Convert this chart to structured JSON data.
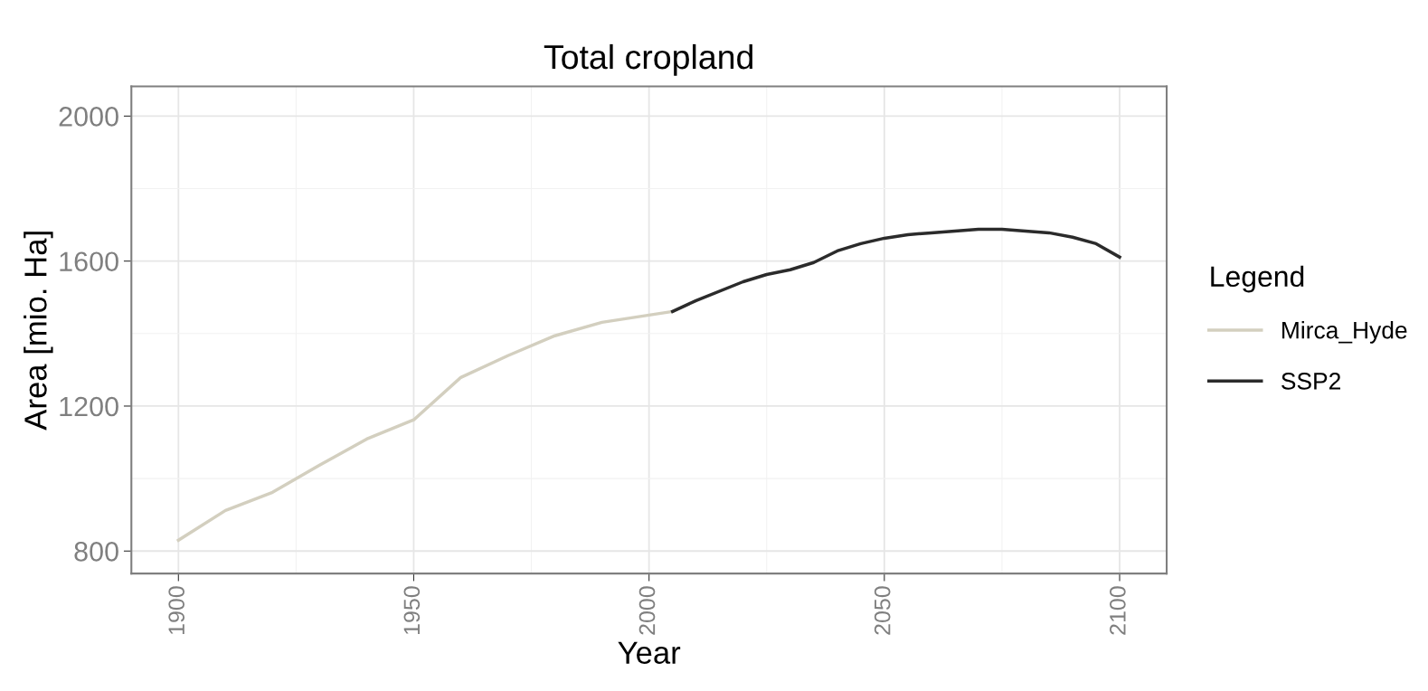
{
  "chart_data": {
    "type": "line",
    "title": "Total cropland",
    "xlabel": "Year",
    "ylabel": "Area [mio. Ha]",
    "legend_title": "Legend",
    "legend": "right",
    "grid": true,
    "xlim": [
      1890,
      2110
    ],
    "xticks": [
      1900,
      1950,
      2000,
      2050,
      2100
    ],
    "ylim": [
      738,
      2082
    ],
    "yticks": [
      800,
      1200,
      1600,
      2000
    ],
    "series": [
      {
        "name": "Mirca_Hyde",
        "color": "#d3cfbf",
        "x": [
          1900,
          1910,
          1920,
          1930,
          1940,
          1950,
          1960,
          1970,
          1980,
          1990,
          2000,
          2005
        ],
        "values": [
          830,
          912,
          962,
          1037,
          1109,
          1162,
          1279,
          1339,
          1394,
          1431,
          1451,
          1461
        ]
      },
      {
        "name": "SSP2",
        "color": "#2b2b2b",
        "x": [
          2005,
          2010,
          2020,
          2025,
          2030,
          2035,
          2040,
          2045,
          2050,
          2055,
          2060,
          2065,
          2070,
          2075,
          2080,
          2085,
          2090,
          2095,
          2100
        ],
        "values": [
          1461,
          1491,
          1543,
          1563,
          1576,
          1596,
          1628,
          1648,
          1663,
          1673,
          1678,
          1683,
          1688,
          1688,
          1683,
          1678,
          1666,
          1648,
          1611
        ]
      }
    ]
  }
}
